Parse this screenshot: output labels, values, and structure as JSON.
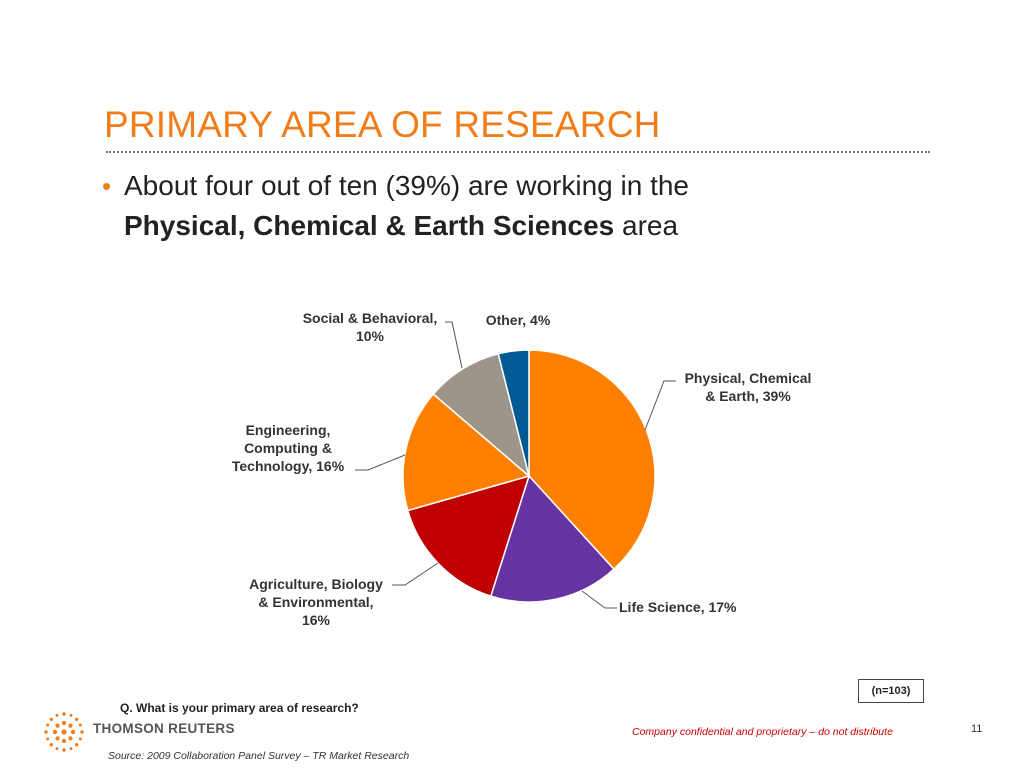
{
  "slide": {
    "title": "PRIMARY AREA OF RESEARCH",
    "bullet_line1": "About four out of ten (39%) are working in the",
    "bullet_bold": "Physical, Chemical & Earth Sciences",
    "bullet_tail": " area",
    "n_label": "(n=103)",
    "question": "Q.  What is your primary area of research?",
    "logo_text": "THOMSON REUTERS",
    "confidential": "Company confidential and proprietary – do not distribute",
    "page_number": "11",
    "source": "Source:  2009 Collaboration Panel Survey – TR Market Research"
  },
  "colors": {
    "title": "#f07c1a",
    "confidential": "#cc0000"
  },
  "chart_data": {
    "type": "pie",
    "slices": [
      {
        "label_lines": [
          "Physical, Chemical",
          "& Earth, 39%"
        ],
        "value": 39,
        "color": "#ff8000"
      },
      {
        "label_lines": [
          "Life Science, 17%"
        ],
        "value": 17,
        "color": "#6633a3"
      },
      {
        "label_lines": [
          "Agriculture, Biology",
          "& Environmental,",
          "16%"
        ],
        "value": 16,
        "color": "#c00000"
      },
      {
        "label_lines": [
          "Engineering,",
          "Computing &",
          "Technology, 16%"
        ],
        "value": 16,
        "color": "#ff8000"
      },
      {
        "label_lines": [
          "Social & Behavioral,",
          "10%"
        ],
        "value": 10,
        "color": "#9e958a"
      },
      {
        "label_lines": [
          "Other, 4%"
        ],
        "value": 4,
        "color": "#005b94"
      }
    ]
  }
}
